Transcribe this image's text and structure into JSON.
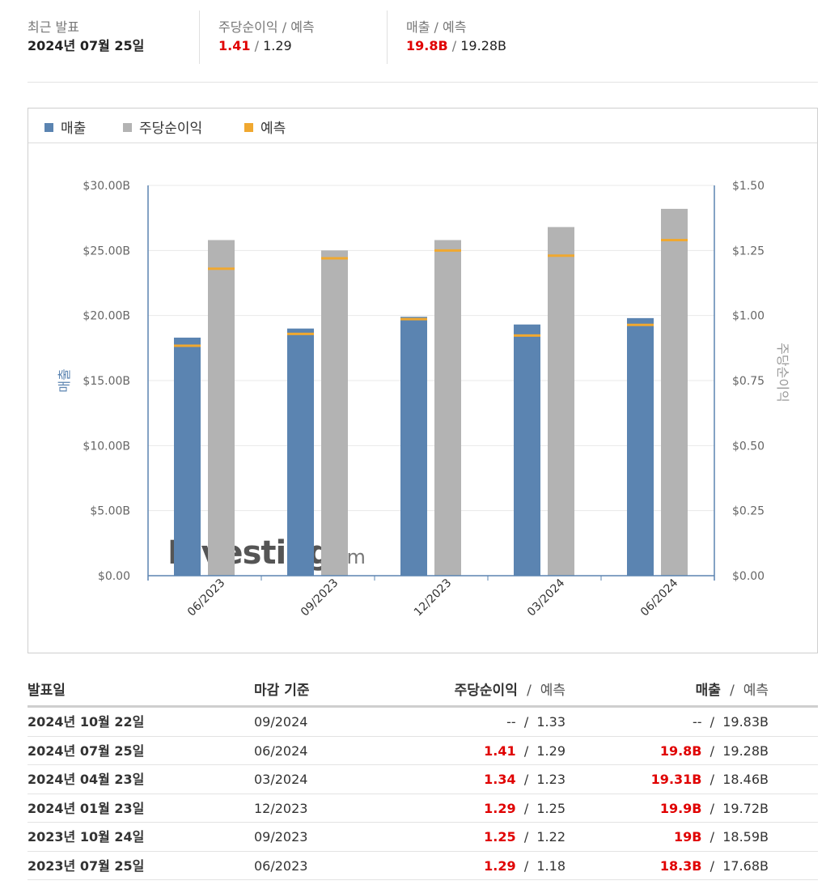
{
  "summary": {
    "latest_label": "최근 발표",
    "latest_date": "2024년 07월 25일",
    "eps_label": "주당순이익",
    "eps_forecast_label": "예측",
    "eps_actual": "1.41",
    "eps_forecast": "1.29",
    "rev_label": "매출",
    "rev_forecast_label": "예측",
    "rev_actual": "19.8B",
    "rev_forecast": "19.28B"
  },
  "legend": {
    "revenue": "매출",
    "eps": "주당순이익",
    "forecast": "예측"
  },
  "colors": {
    "revenue": "#5b84b1",
    "eps": "#b3b3b3",
    "forecast": "#f0a830",
    "actual_red": "#e00000",
    "axis": "#5b84b1"
  },
  "watermark": "Investing.com",
  "chart_data": {
    "type": "bar",
    "categories": [
      "06/2023",
      "09/2023",
      "12/2023",
      "03/2024",
      "06/2024"
    ],
    "series": [
      {
        "name": "매출",
        "axis": "left",
        "values": [
          18.3,
          19.0,
          19.9,
          19.31,
          19.8
        ],
        "forecast": [
          17.68,
          18.59,
          19.72,
          18.46,
          19.28
        ]
      },
      {
        "name": "주당순이익",
        "axis": "right",
        "values": [
          1.29,
          1.25,
          1.29,
          1.34,
          1.41
        ],
        "forecast": [
          1.18,
          1.22,
          1.25,
          1.23,
          1.29
        ]
      }
    ],
    "left_axis": {
      "label": "매출",
      "ticks": [
        "$0.00",
        "$5.00B",
        "$10.00B",
        "$15.00B",
        "$20.00B",
        "$25.00B",
        "$30.00B"
      ],
      "range": [
        0,
        30
      ]
    },
    "right_axis": {
      "label": "주당순이익",
      "ticks": [
        "$0.00",
        "$0.25",
        "$0.50",
        "$0.75",
        "$1.00",
        "$1.25",
        "$1.50"
      ],
      "range": [
        0,
        1.5
      ]
    },
    "grid": true,
    "legend_position": "top-left"
  },
  "table": {
    "headers": {
      "date": "발표일",
      "period": "마감 기준",
      "eps": "주당순이익",
      "eps_forecast": "예측",
      "rev": "매출",
      "rev_forecast": "예측"
    },
    "rows": [
      {
        "date": "2024년 10월 22일",
        "period": "09/2024",
        "eps": "--",
        "eps_forecast": "1.33",
        "rev": "--",
        "rev_forecast": "19.83B",
        "highlight": false
      },
      {
        "date": "2024년 07월 25일",
        "period": "06/2024",
        "eps": "1.41",
        "eps_forecast": "1.29",
        "rev": "19.8B",
        "rev_forecast": "19.28B",
        "highlight": true
      },
      {
        "date": "2024년 04월 23일",
        "period": "03/2024",
        "eps": "1.34",
        "eps_forecast": "1.23",
        "rev": "19.31B",
        "rev_forecast": "18.46B",
        "highlight": true
      },
      {
        "date": "2024년 01월 23일",
        "period": "12/2023",
        "eps": "1.29",
        "eps_forecast": "1.25",
        "rev": "19.9B",
        "rev_forecast": "19.72B",
        "highlight": true
      },
      {
        "date": "2023년 10월 24일",
        "period": "09/2023",
        "eps": "1.25",
        "eps_forecast": "1.22",
        "rev": "19B",
        "rev_forecast": "18.59B",
        "highlight": true
      },
      {
        "date": "2023년 07월 25일",
        "period": "06/2023",
        "eps": "1.29",
        "eps_forecast": "1.18",
        "rev": "18.3B",
        "rev_forecast": "17.68B",
        "highlight": true
      }
    ]
  }
}
